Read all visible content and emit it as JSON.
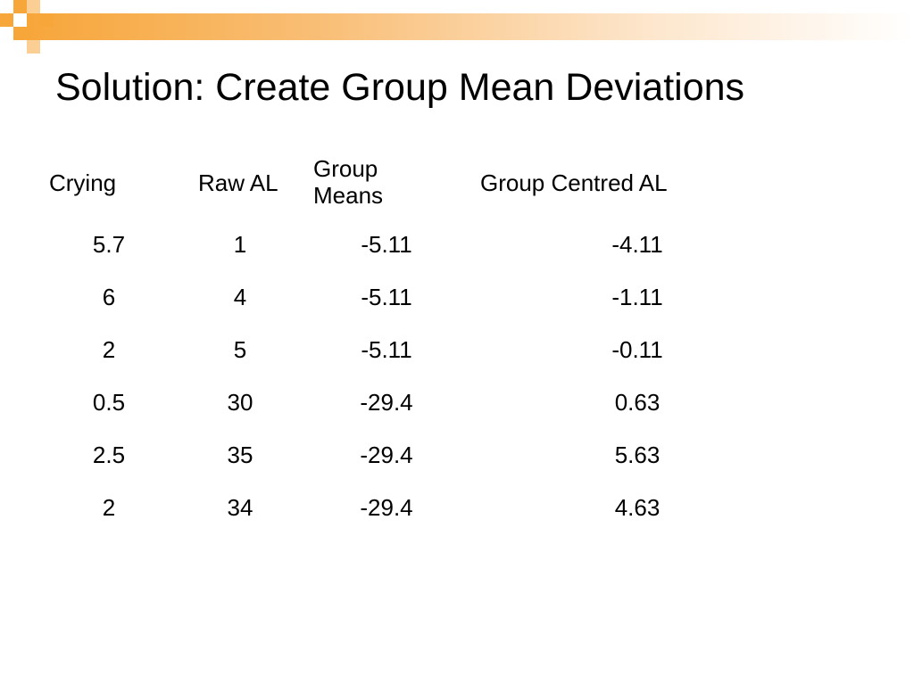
{
  "slide": {
    "title": "Solution: Create Group Mean Deviations"
  },
  "table": {
    "headers": {
      "crying": "Crying",
      "raw_al": "Raw AL",
      "group_means_line1": "Group",
      "group_means_line2": "Means",
      "group_centred_al": "Group Centred AL"
    },
    "rows": [
      {
        "crying": "5.7",
        "raw_al": "1",
        "group_means": "-5.11",
        "group_centred_al": "-4.11"
      },
      {
        "crying": "6",
        "raw_al": "4",
        "group_means": "-5.11",
        "group_centred_al": "-1.11"
      },
      {
        "crying": "2",
        "raw_al": "5",
        "group_means": "-5.11",
        "group_centred_al": "-0.11"
      },
      {
        "crying": "0.5",
        "raw_al": "30",
        "group_means": "-29.4",
        "group_centred_al": "0.63"
      },
      {
        "crying": "2.5",
        "raw_al": "35",
        "group_means": "-29.4",
        "group_centred_al": "5.63"
      },
      {
        "crying": "2",
        "raw_al": "34",
        "group_means": "-29.4",
        "group_centred_al": "4.63"
      }
    ]
  },
  "theme": {
    "accent": "#f7a63a"
  }
}
